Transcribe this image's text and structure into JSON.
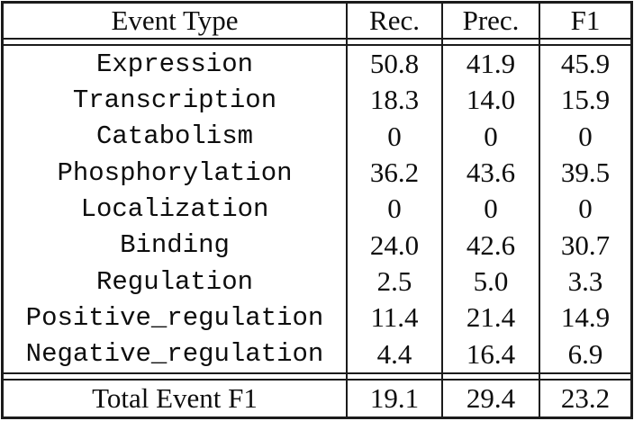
{
  "colors": {
    "background": "#ffffff",
    "text": "#0d0d0d",
    "rule": "#1b1b1b"
  },
  "table": {
    "columns": [
      "Event Type",
      "Rec.",
      "Prec.",
      "F1"
    ],
    "rows": [
      {
        "event": "Expression",
        "rec": "50.8",
        "prec": "41.9",
        "f1": "45.9"
      },
      {
        "event": "Transcription",
        "rec": "18.3",
        "prec": "14.0",
        "f1": "15.9"
      },
      {
        "event": "Catabolism",
        "rec": "0",
        "prec": "0",
        "f1": "0"
      },
      {
        "event": "Phosphorylation",
        "rec": "36.2",
        "prec": "43.6",
        "f1": "39.5"
      },
      {
        "event": "Localization",
        "rec": "0",
        "prec": "0",
        "f1": "0"
      },
      {
        "event": "Binding",
        "rec": "24.0",
        "prec": "42.6",
        "f1": "30.7"
      },
      {
        "event": "Regulation",
        "rec": "2.5",
        "prec": "5.0",
        "f1": "3.3"
      },
      {
        "event": "Positive_regulation",
        "rec": "11.4",
        "prec": "21.4",
        "f1": "14.9"
      },
      {
        "event": "Negative_regulation",
        "rec": "4.4",
        "prec": "16.4",
        "f1": "6.9"
      }
    ],
    "footer": {
      "label": "Total Event F1",
      "rec": "19.1",
      "prec": "29.4",
      "f1": "23.2"
    }
  }
}
